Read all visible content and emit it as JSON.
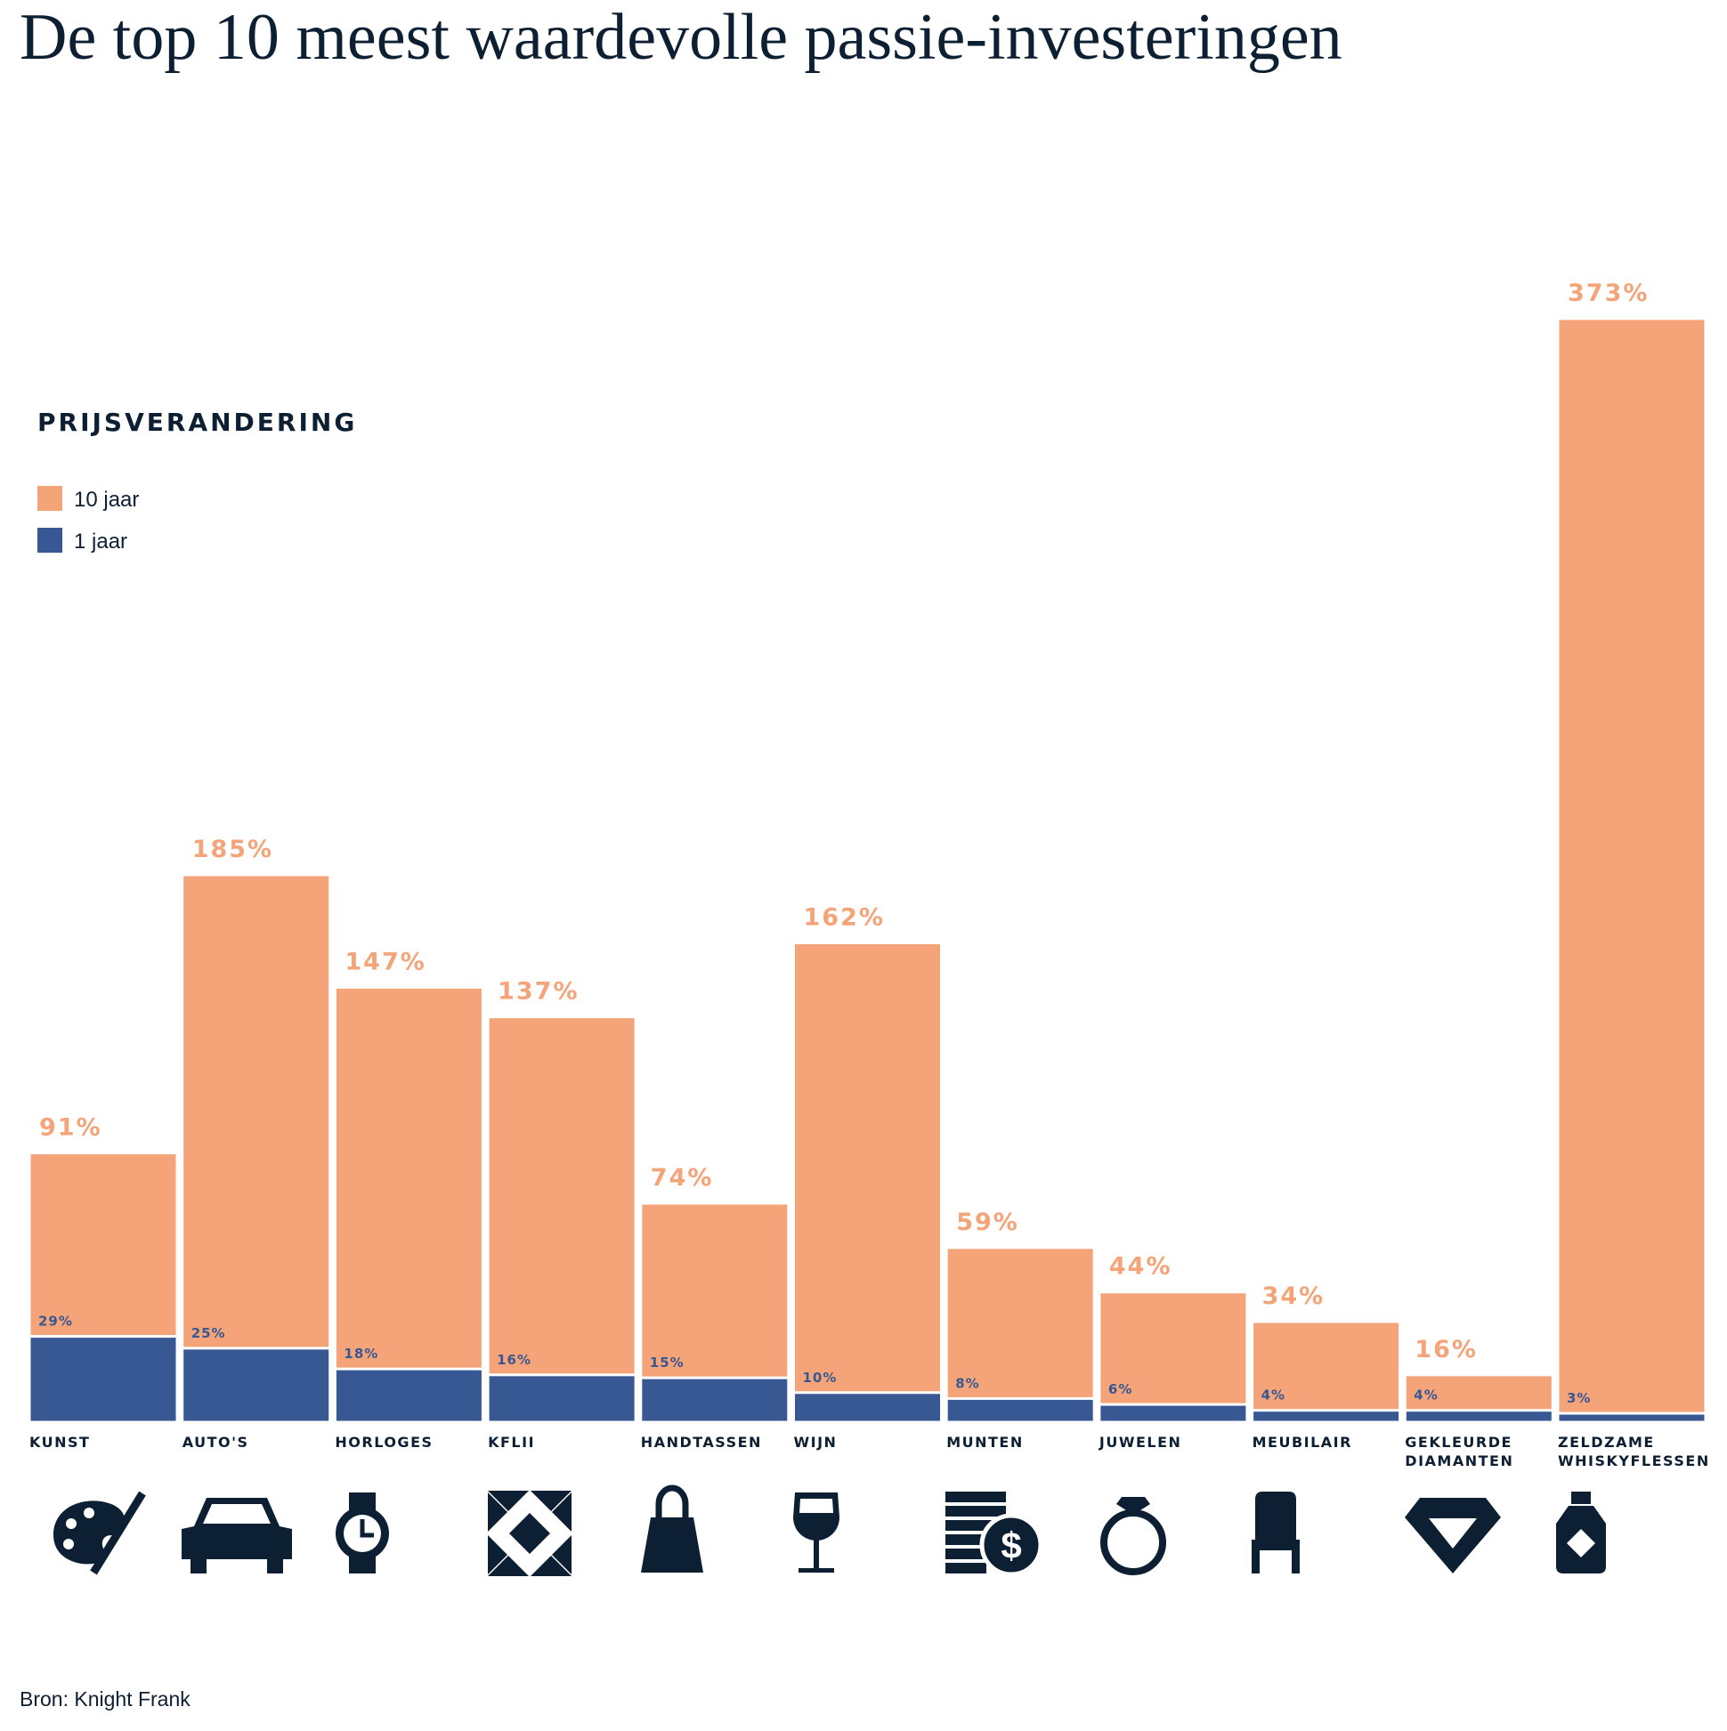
{
  "chart_data": {
    "type": "bar",
    "title": "De top 10 meest waardevolle passie-investeringen",
    "legend_title": "PRIJSVERANDERING",
    "categories": [
      "KUNST",
      "AUTO'S",
      "HORLOGES",
      "KFLII",
      "HANDTASSEN",
      "WIJN",
      "MUNTEN",
      "JUWELEN",
      "MEUBILAIR",
      "GEKLEURDE DIAMANTEN",
      "ZELDZAME WHISKYFLESSEN"
    ],
    "series": [
      {
        "name": "10 jaar",
        "color": "#f4a478",
        "values": [
          91,
          185,
          147,
          137,
          74,
          162,
          59,
          44,
          34,
          16,
          373
        ],
        "value_labels": [
          "91%",
          "185%",
          "147%",
          "137%",
          "74%",
          "162%",
          "59%",
          "44%",
          "34%",
          "16%",
          "373%"
        ]
      },
      {
        "name": "1 jaar",
        "color": "#385893",
        "values": [
          29,
          25,
          18,
          16,
          15,
          10,
          8,
          6,
          4,
          4,
          3
        ],
        "value_labels": [
          "29%",
          "25%",
          "18%",
          "16%",
          "15%",
          "10%",
          "8%",
          "6%",
          "4%",
          "4%",
          "3%"
        ]
      }
    ],
    "source": "Bron: Knight Frank"
  }
}
